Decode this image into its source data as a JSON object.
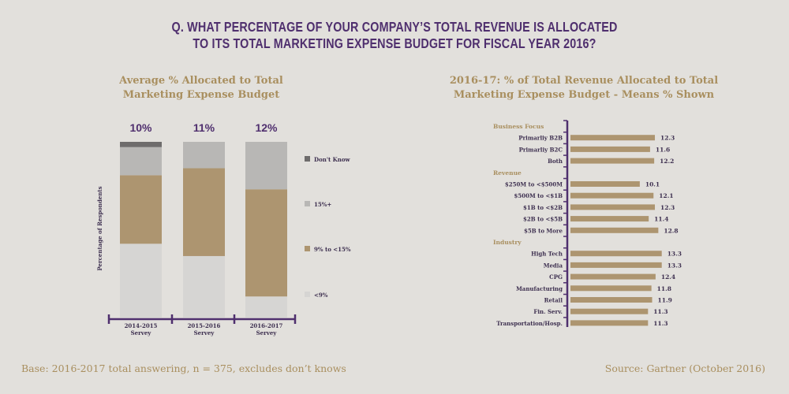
{
  "question": {
    "line1": "Q. WHAT PERCENTAGE OF YOUR COMPANY’S TOTAL REVENUE IS ALLOCATED",
    "line2": "TO ITS TOTAL MARKETING EXPENSE BUDGET FOR FISCAL YEAR 2016?"
  },
  "footer": {
    "base": "Base: 2016-2017 total answering, n = 375, excludes don’t knows",
    "source": "Source: Gartner (October 2016)"
  },
  "colors": {
    "title_purple": "#4f2f6e",
    "gold": "#a98f5f",
    "dont_know": "#6e6c6c",
    "pct15plus": "#b8b7b5",
    "pct9to15": "#ad9570",
    "under9": "#d6d5d3",
    "bar_tan": "#ad9570",
    "axis_purple": "#4f2f6e"
  },
  "chart_data": [
    {
      "type": "bar",
      "stacked": true,
      "title": "Average % Allocated to Total Marketing Expense Budget",
      "title_lines": [
        "Average % Allocated to Total",
        "Marketing Expense Budget"
      ],
      "ylabel": "Percentage of Respondents",
      "ylim": [
        0,
        100
      ],
      "categories": [
        "2014-2015 Servey",
        "2015-2016 Servey",
        "2016-2017 Servey"
      ],
      "category_lines": [
        [
          "2014-2015",
          "Servey"
        ],
        [
          "2015-2016",
          "Servey"
        ],
        [
          "2016-2017",
          "Servey"
        ]
      ],
      "top_labels": [
        "10%",
        "11%",
        "12%"
      ],
      "series": [
        {
          "name": "<9%",
          "color": "#d6d5d3",
          "values": [
            42,
            35,
            12
          ]
        },
        {
          "name": "9% to <15%",
          "color": "#ad9570",
          "values": [
            39,
            50,
            61
          ]
        },
        {
          "name": "15%+",
          "color": "#b8b7b5",
          "values": [
            16,
            15,
            27
          ]
        },
        {
          "name": "Don't Know",
          "color": "#6e6c6c",
          "values": [
            3,
            0,
            0
          ]
        }
      ],
      "legend": [
        "Don't Know",
        "15%+",
        "9% to <15%",
        "<9%"
      ],
      "legend_position": "right"
    },
    {
      "type": "bar",
      "orientation": "horizontal",
      "title": "2016-17: % of Total Revenue Allocated to Total Marketing Expense Budget - Means % Shown",
      "title_lines": [
        "2016-17: % of Total Revenue Allocated to Total",
        "Marketing Expense Budget - Means % Shown"
      ],
      "xlim": [
        0,
        15
      ],
      "groups": [
        {
          "name": "Business Focus",
          "items": [
            {
              "label": "Primarliy B2B",
              "value": 12.3
            },
            {
              "label": "Primarliy B2C",
              "value": 11.6
            },
            {
              "label": "Both",
              "value": 12.2
            }
          ]
        },
        {
          "name": "Revenue",
          "items": [
            {
              "label": "$250M to <$500M",
              "value": 10.1
            },
            {
              "label": "$500M to <$1B",
              "value": 12.1
            },
            {
              "label": "$1B to <$2B",
              "value": 12.3
            },
            {
              "label": "$2B to <$5B",
              "value": 11.4
            },
            {
              "label": "$5B to More",
              "value": 12.8
            }
          ]
        },
        {
          "name": "Industry",
          "items": [
            {
              "label": "High Tech",
              "value": 13.3
            },
            {
              "label": "Media",
              "value": 13.3
            },
            {
              "label": "CPG",
              "value": 12.4
            },
            {
              "label": "Manufacturing",
              "value": 11.8
            },
            {
              "label": "Retail",
              "value": 11.9
            },
            {
              "label": "Fin. Serv.",
              "value": 11.3
            },
            {
              "label": "Transportation/Hosp.",
              "value": 11.3
            }
          ]
        }
      ]
    }
  ]
}
